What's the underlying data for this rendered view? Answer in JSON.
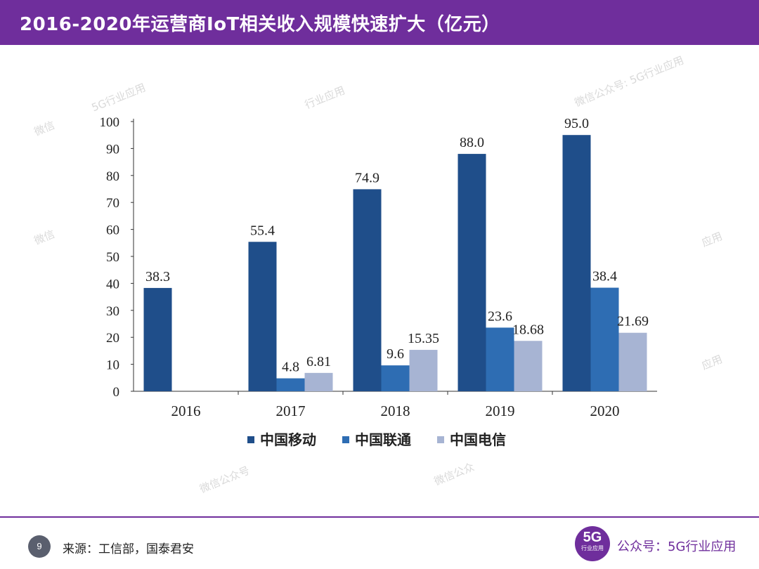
{
  "header": {
    "title": "2016-2020年运营商IoT相关收入规模快速扩大（亿元）"
  },
  "watermarks": [
    "5G行业应用",
    "微信",
    "行业应用",
    "微信公众号: 5G行业应用",
    "微信",
    "应用",
    "应用",
    "微信公众号",
    "微信公众"
  ],
  "chart_data": {
    "type": "bar",
    "categories": [
      "2016",
      "2017",
      "2018",
      "2019",
      "2020"
    ],
    "series": [
      {
        "name": "中国移动",
        "values": [
          38.3,
          55.4,
          74.9,
          88.0,
          95.0
        ],
        "labels": [
          "38.3",
          "55.4",
          "74.9",
          "88.0",
          "95.0"
        ],
        "color": "#1f4e8a"
      },
      {
        "name": "中国联通",
        "values": [
          null,
          4.8,
          9.6,
          23.6,
          38.4
        ],
        "labels": [
          "",
          "4.8",
          "9.6",
          "23.6",
          "38.4"
        ],
        "color": "#2e6db3"
      },
      {
        "name": "中国电信",
        "values": [
          null,
          6.81,
          15.35,
          18.68,
          21.69
        ],
        "labels": [
          "",
          "6.81",
          "15.35",
          "18.68",
          "21.69"
        ],
        "color": "#a7b4d3"
      }
    ],
    "ylim": [
      0,
      100
    ],
    "yticks": [
      0,
      10,
      20,
      30,
      40,
      50,
      60,
      70,
      80,
      90,
      100
    ],
    "title": "",
    "xlabel": "",
    "ylabel": "",
    "legend_position": "bottom"
  },
  "footer": {
    "page_number": "9",
    "source": "来源：工信部，国泰君安",
    "logo_text": "5G",
    "logo_subtext": "行业应用",
    "wechat": "公众号：5G行业应用"
  }
}
